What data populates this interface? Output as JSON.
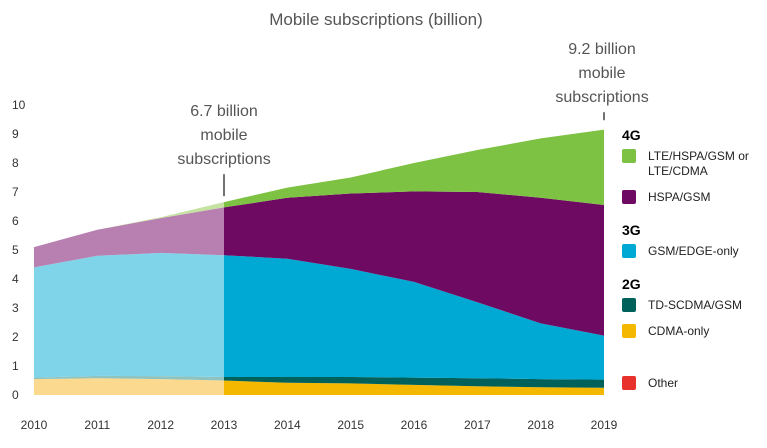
{
  "chart_data": {
    "type": "area",
    "stacked": true,
    "title": "Mobile subscriptions (billion)",
    "xlabel": "",
    "ylabel": "",
    "x": [
      2010,
      2011,
      2012,
      2013,
      2014,
      2015,
      2016,
      2017,
      2018,
      2019
    ],
    "y_ticks": [
      0,
      1,
      2,
      3,
      4,
      5,
      6,
      7,
      8,
      9,
      10
    ],
    "ylim": [
      0,
      10
    ],
    "historical_through": 2013,
    "series": [
      {
        "key": "cdma",
        "name": "CDMA-only",
        "color": "#f5b800",
        "hist_color": "#fbd98f",
        "values": [
          0.55,
          0.58,
          0.55,
          0.5,
          0.42,
          0.4,
          0.35,
          0.3,
          0.27,
          0.25
        ]
      },
      {
        "key": "tdscdma",
        "name": "TD-SCDMA/GSM",
        "color": "#00615a",
        "hist_color": "#8fc3bf",
        "values": [
          0.05,
          0.08,
          0.1,
          0.12,
          0.2,
          0.22,
          0.25,
          0.28,
          0.28,
          0.28
        ]
      },
      {
        "key": "gsmedge",
        "name": "GSM/EDGE-only",
        "color": "#00a9d4",
        "hist_color": "#80d4ea",
        "values": [
          3.8,
          4.14,
          4.25,
          4.2,
          4.08,
          3.73,
          3.3,
          2.62,
          1.92,
          1.52
        ]
      },
      {
        "key": "hspa",
        "name": "HSPA/GSM",
        "color": "#6e0a62",
        "hist_color": "#b87fb1",
        "values": [
          0.7,
          0.9,
          1.2,
          1.65,
          2.1,
          2.6,
          3.12,
          3.8,
          4.33,
          4.5
        ]
      },
      {
        "key": "lte",
        "name": "LTE/HSPA/GSM or LTE/CDMA",
        "color": "#7dc242",
        "hist_color": "#c6e2a3",
        "values": [
          0.0,
          0.0,
          0.03,
          0.18,
          0.35,
          0.55,
          0.98,
          1.45,
          2.05,
          2.6
        ]
      },
      {
        "key": "other",
        "name": "Other",
        "color": "#e8312a",
        "hist_color": "#f5a09b",
        "values": [
          0,
          0,
          0,
          0,
          0,
          0,
          0,
          0,
          0,
          0
        ]
      }
    ],
    "annotations": [
      {
        "x": 2013,
        "y": 6.65,
        "lines": [
          "6.7 billion",
          "mobile",
          "subscriptions"
        ]
      },
      {
        "x": 2019,
        "y": 9.2,
        "lines": [
          "9.2 billion",
          "mobile",
          "subscriptions"
        ]
      }
    ],
    "legend": {
      "placement": "right",
      "groups": [
        {
          "label": "4G",
          "items": [
            {
              "key": "lte",
              "lines": [
                "LTE/HSPA/GSM or",
                "LTE/CDMA"
              ]
            },
            {
              "key": "hspa",
              "lines": [
                "HSPA/GSM"
              ]
            }
          ]
        },
        {
          "label": "3G",
          "items": [
            {
              "key": "gsmedge",
              "lines": [
                "GSM/EDGE-only"
              ]
            }
          ]
        },
        {
          "label": "2G",
          "items": [
            {
              "key": "tdscdma",
              "lines": [
                "TD-SCDMA/GSM"
              ]
            },
            {
              "key": "cdma",
              "lines": [
                "CDMA-only"
              ]
            }
          ]
        },
        {
          "label": "",
          "items": [
            {
              "key": "other",
              "lines": [
                "Other"
              ]
            }
          ]
        }
      ]
    },
    "grid": false
  }
}
